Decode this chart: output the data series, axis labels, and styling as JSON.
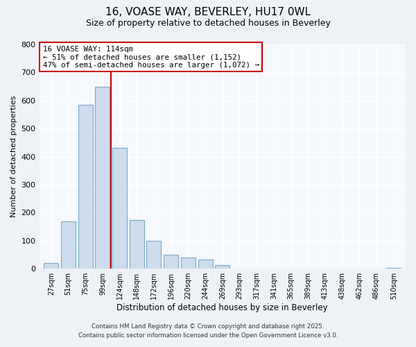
{
  "title_line1": "16, VOASE WAY, BEVERLEY, HU17 0WL",
  "title_line2": "Size of property relative to detached houses in Beverley",
  "xlabel": "Distribution of detached houses by size in Beverley",
  "ylabel": "Number of detached properties",
  "bar_labels": [
    "27sqm",
    "51sqm",
    "75sqm",
    "99sqm",
    "124sqm",
    "148sqm",
    "172sqm",
    "196sqm",
    "220sqm",
    "244sqm",
    "269sqm",
    "293sqm",
    "317sqm",
    "341sqm",
    "365sqm",
    "389sqm",
    "413sqm",
    "438sqm",
    "462sqm",
    "486sqm",
    "510sqm"
  ],
  "bar_values": [
    20,
    170,
    585,
    648,
    430,
    175,
    100,
    50,
    40,
    33,
    12,
    0,
    0,
    0,
    0,
    0,
    0,
    0,
    0,
    0,
    2
  ],
  "bar_color": "#ccdded",
  "bar_edgecolor": "#7aaac8",
  "vline_x_index": 3.5,
  "vline_color": "#cc0000",
  "annotation_title": "16 VOASE WAY: 114sqm",
  "annotation_line2": "← 51% of detached houses are smaller (1,152)",
  "annotation_line3": "47% of semi-detached houses are larger (1,072) →",
  "annotation_box_edgecolor": "#cc0000",
  "ylim": [
    0,
    800
  ],
  "yticks": [
    0,
    100,
    200,
    300,
    400,
    500,
    600,
    700,
    800
  ],
  "footer_line1": "Contains HM Land Registry data © Crown copyright and database right 2025.",
  "footer_line2": "Contains public sector information licensed under the Open Government Licence v3.0.",
  "bg_color": "#eef2f7",
  "plot_bg_color": "#f5f8fc"
}
